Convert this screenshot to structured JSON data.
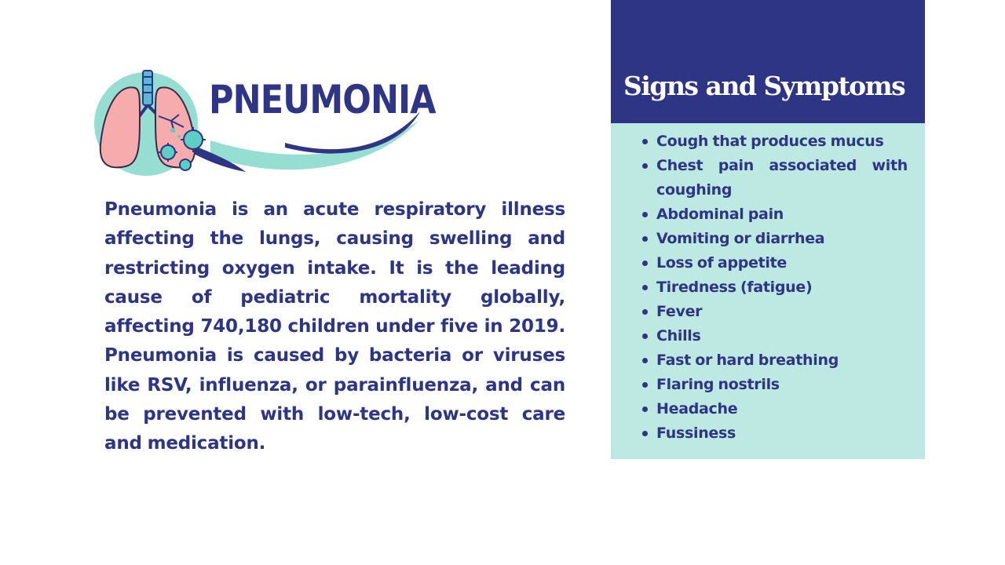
{
  "logo": {
    "wordmark": "PNEUMONIA",
    "icon": "lungs-with-virus-icon",
    "colors": {
      "navy": "#2d3584",
      "teal": "#96ddd2",
      "pink": "#f6abac"
    }
  },
  "intro": {
    "text": "Pneumonia is an acute respiratory illness affecting the lungs, causing swelling and restricting oxygen intake. It is the leading cause of pediatric mortality globally, affecting 740,180 children under five in 2019. Pneumonia is caused by bacteria or viruses like RSV, influenza, or parainfluenza, and can be prevented with low-tech, low-cost care and medication."
  },
  "panel": {
    "title": "Signs and Symptoms",
    "header_color": "#2d3584",
    "body_color": "#bde9e2",
    "items": [
      "Cough that produces mucus",
      "Chest pain associated with coughing",
      "Abdominal pain",
      "Vomiting or diarrhea",
      "Loss of appetite",
      "Tiredness (fatigue)",
      "Fever",
      "Chills",
      "Fast or hard breathing",
      "Flaring nostrils",
      "Headache",
      "Fussiness"
    ]
  }
}
